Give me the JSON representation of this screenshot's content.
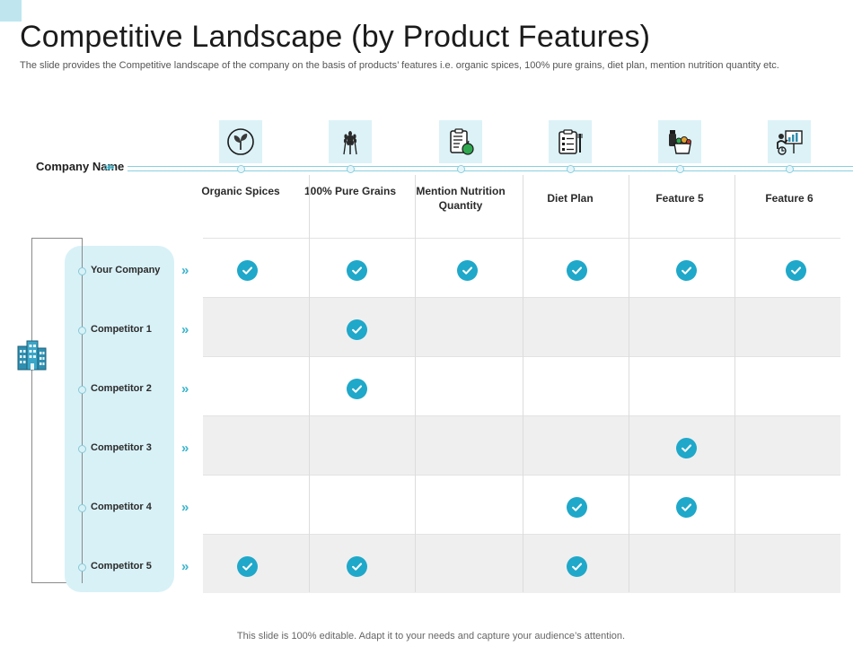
{
  "title": "Competitive Landscape (by Product Features)",
  "subtitle": "The slide provides the Competitive landscape of the company on the basis of products’ features i.e. organic spices, 100% pure grains, diet plan, mention nutrition quantity etc.",
  "company_label": "Company Name",
  "features": [
    {
      "label": "Organic Spices",
      "icon": "sprout-icon"
    },
    {
      "label": "100% Pure Grains",
      "icon": "wheat-icon"
    },
    {
      "label": "Mention Nutrition Quantity",
      "icon": "nutrition-clipboard-icon"
    },
    {
      "label": "Diet Plan",
      "icon": "diet-plan-icon"
    },
    {
      "label": "Feature 5",
      "icon": "grocery-icon"
    },
    {
      "label": "Feature 6",
      "icon": "presentation-icon"
    }
  ],
  "companies": [
    {
      "name": "Your Company",
      "checks": [
        true,
        true,
        true,
        true,
        true,
        true
      ]
    },
    {
      "name": "Competitor 1",
      "checks": [
        false,
        true,
        false,
        false,
        false,
        false
      ]
    },
    {
      "name": "Competitor 2",
      "checks": [
        false,
        true,
        false,
        false,
        false,
        false
      ]
    },
    {
      "name": "Competitor 3",
      "checks": [
        false,
        false,
        false,
        false,
        true,
        false
      ]
    },
    {
      "name": "Competitor 4",
      "checks": [
        false,
        false,
        false,
        true,
        true,
        false
      ]
    },
    {
      "name": "Competitor 5",
      "checks": [
        true,
        true,
        false,
        true,
        false,
        false
      ]
    }
  ],
  "footer": "This slide is 100% editable. Adapt it to your needs and capture your audience’s attention.",
  "colors": {
    "accent": "#1fa8c9",
    "light_accent": "#d8f1f7",
    "row_shade": "#efefef"
  }
}
